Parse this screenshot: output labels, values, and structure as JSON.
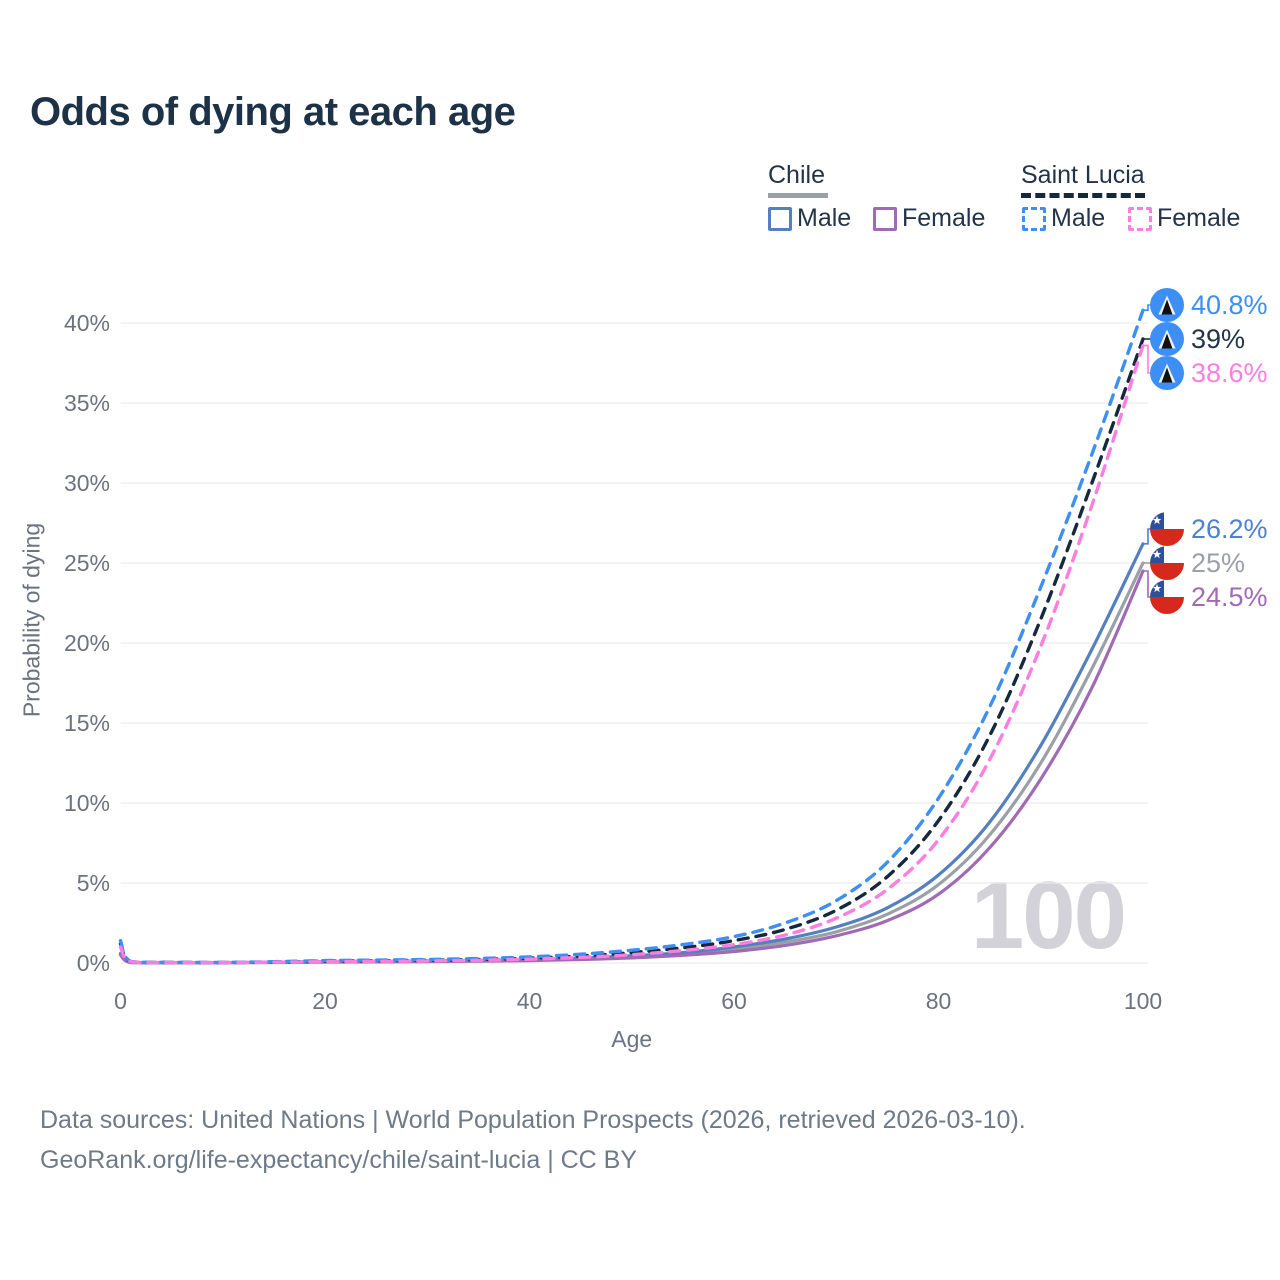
{
  "header": {
    "title": "Odds of dying at each age"
  },
  "legend": {
    "groups": [
      {
        "name": "Chile",
        "line_style": "solid",
        "underline_color": "#9aa0a6",
        "items": [
          {
            "label": "Male",
            "color": "#5580bf"
          },
          {
            "label": "Female",
            "color": "#a06ab4"
          }
        ]
      },
      {
        "name": "Saint Lucia",
        "line_style": "dashed",
        "underline_color": "#16283c",
        "items": [
          {
            "label": "Male",
            "color": "#3d8ef5"
          },
          {
            "label": "Female",
            "color": "#fc7ee0"
          }
        ]
      }
    ]
  },
  "chart_data": {
    "type": "line",
    "title": "Odds of dying at each age",
    "xlabel": "Age",
    "ylabel": "Probability of dying",
    "xlim": [
      0,
      100
    ],
    "ylim": [
      0,
      42
    ],
    "grid": true,
    "watermark": "100",
    "x_tick_values": [
      0,
      20,
      40,
      60,
      80,
      100
    ],
    "x_tick_labels": [
      "0",
      "20",
      "40",
      "60",
      "80",
      "100"
    ],
    "y_tick_values": [
      0,
      5,
      10,
      15,
      20,
      25,
      30,
      35,
      40
    ],
    "y_tick_labels": [
      "0%",
      "5%",
      "10%",
      "15%",
      "20%",
      "25%",
      "30%",
      "35%",
      "40%"
    ],
    "ages": [
      0,
      1,
      5,
      10,
      15,
      20,
      25,
      30,
      35,
      40,
      45,
      50,
      55,
      60,
      65,
      70,
      75,
      80,
      85,
      90,
      95,
      100
    ],
    "series": [
      {
        "name": "Chile Both sexes",
        "country": "Chile",
        "sex": "Both",
        "color": "#9aa0a6",
        "dashed": false,
        "values": [
          0.55,
          0.04,
          0.02,
          0.02,
          0.04,
          0.07,
          0.09,
          0.11,
          0.14,
          0.18,
          0.26,
          0.38,
          0.56,
          0.85,
          1.3,
          1.95,
          3.05,
          4.9,
          8.0,
          12.5,
          18.4,
          25.0
        ]
      },
      {
        "name": "Chile Male",
        "country": "Chile",
        "sex": "Male",
        "color": "#5580bf",
        "dashed": false,
        "values": [
          0.6,
          0.05,
          0.02,
          0.02,
          0.05,
          0.09,
          0.11,
          0.13,
          0.16,
          0.21,
          0.3,
          0.45,
          0.65,
          1.0,
          1.5,
          2.25,
          3.45,
          5.5,
          8.8,
          13.6,
          19.6,
          26.2
        ]
      },
      {
        "name": "Chile Female",
        "country": "Chile",
        "sex": "Female",
        "color": "#a06ab4",
        "dashed": false,
        "values": [
          0.5,
          0.04,
          0.02,
          0.02,
          0.03,
          0.05,
          0.07,
          0.09,
          0.12,
          0.15,
          0.22,
          0.32,
          0.48,
          0.72,
          1.1,
          1.7,
          2.65,
          4.3,
          7.2,
          11.5,
          17.2,
          24.5
        ]
      },
      {
        "name": "Saint Lucia Both sexes",
        "country": "Saint Lucia",
        "sex": "Both",
        "color": "#16283c",
        "dashed": true,
        "values": [
          1.2,
          0.09,
          0.04,
          0.03,
          0.06,
          0.11,
          0.14,
          0.17,
          0.22,
          0.3,
          0.44,
          0.65,
          0.95,
          1.4,
          2.1,
          3.3,
          5.4,
          8.9,
          14.2,
          21.5,
          30.0,
          39.0
        ]
      },
      {
        "name": "Saint Lucia Male",
        "country": "Saint Lucia",
        "sex": "Male",
        "color": "#3d8ef5",
        "dashed": true,
        "values": [
          1.4,
          0.1,
          0.04,
          0.04,
          0.08,
          0.15,
          0.18,
          0.22,
          0.28,
          0.38,
          0.55,
          0.8,
          1.15,
          1.65,
          2.5,
          3.9,
          6.3,
          10.3,
          16.0,
          23.5,
          31.8,
          40.8
        ]
      },
      {
        "name": "Saint Lucia Female",
        "country": "Saint Lucia",
        "sex": "Female",
        "color": "#fc7ee0",
        "dashed": true,
        "values": [
          1.0,
          0.08,
          0.03,
          0.03,
          0.05,
          0.08,
          0.1,
          0.13,
          0.17,
          0.24,
          0.35,
          0.52,
          0.78,
          1.15,
          1.75,
          2.8,
          4.6,
          7.7,
          12.7,
          19.8,
          28.6,
          38.6
        ]
      }
    ],
    "end_labels": [
      {
        "text": "40.8%",
        "value": 40.8,
        "color": "#3d8ef5",
        "flag": "saint-lucia",
        "group": 0
      },
      {
        "text": "39%",
        "value": 39.0,
        "color": "#22344a",
        "flag": "saint-lucia",
        "group": 0
      },
      {
        "text": "38.6%",
        "value": 38.6,
        "color": "#fc7ee0",
        "flag": "saint-lucia",
        "group": 0
      },
      {
        "text": "26.2%",
        "value": 26.2,
        "color": "#4c7fd6",
        "flag": "chile",
        "group": 1
      },
      {
        "text": "25%",
        "value": 25.0,
        "color": "#9aa0a6",
        "flag": "chile",
        "group": 1
      },
      {
        "text": "24.5%",
        "value": 24.5,
        "color": "#a06ab4",
        "flag": "chile",
        "group": 1
      }
    ]
  },
  "footer": {
    "line1": "Data sources: United Nations | World Population Prospects (2026, retrieved 2026-03-10).",
    "line2": "GeoRank.org/life-expectancy/chile/saint-lucia | CC BY"
  }
}
